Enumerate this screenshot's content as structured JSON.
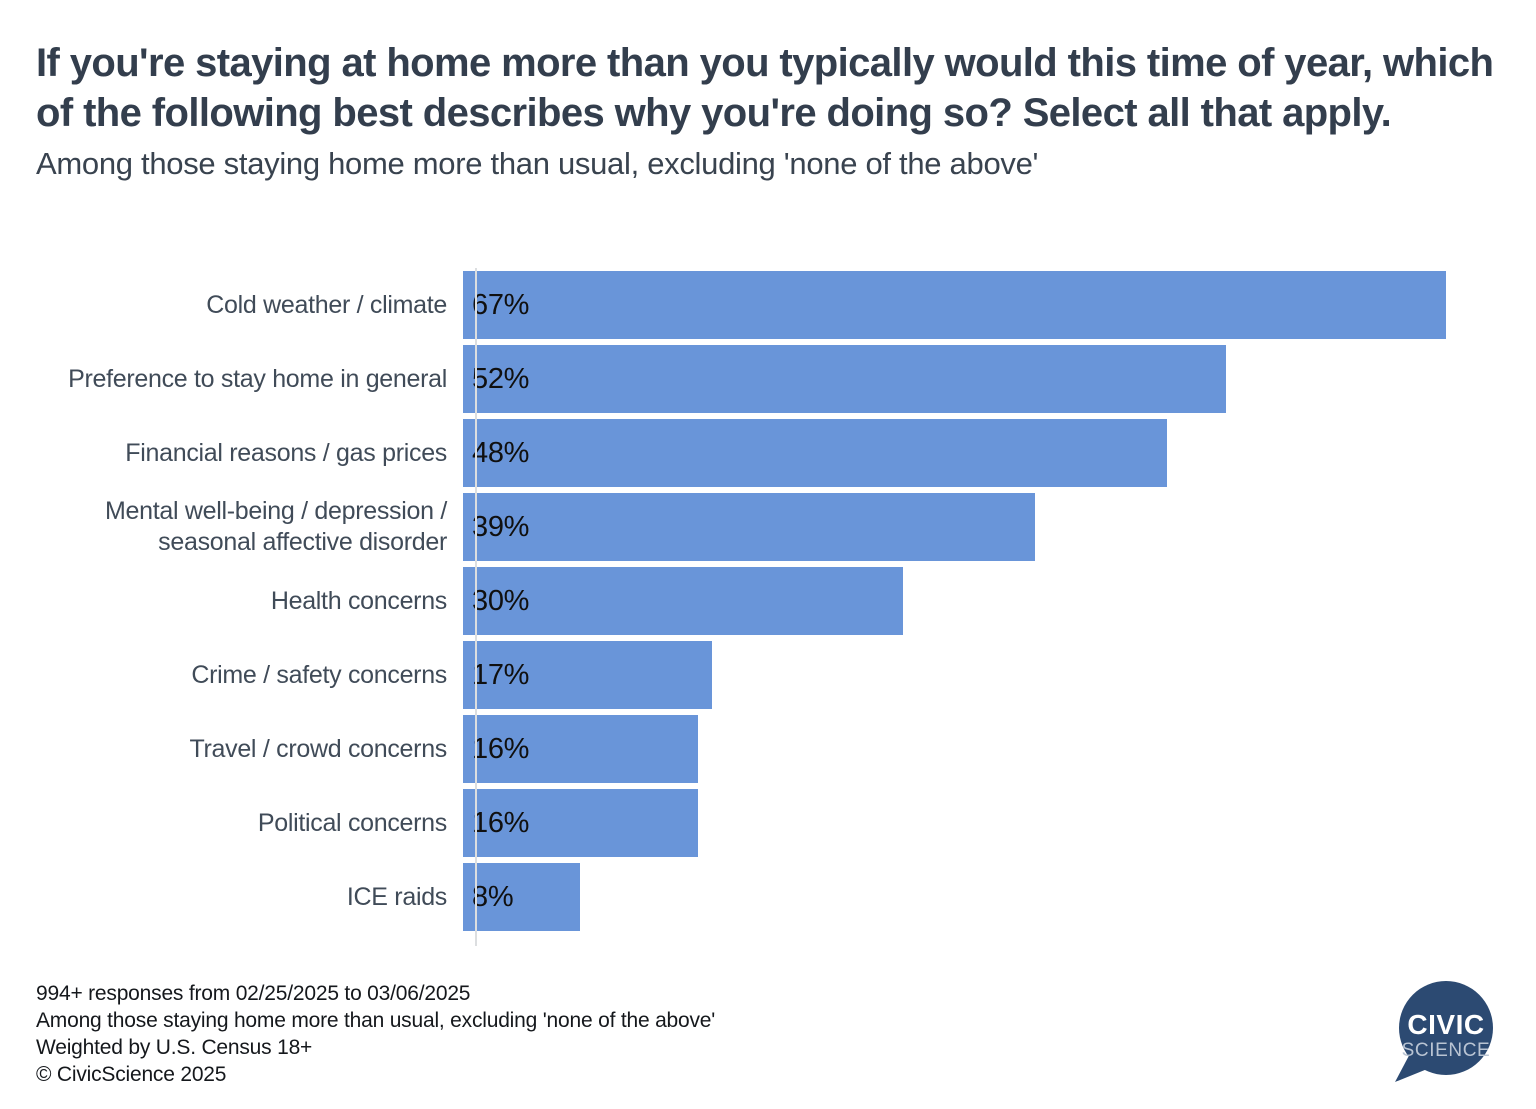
{
  "header": {
    "title": "If you're staying at home more than you typically would this time of year, which of the following best describes why you're doing so? Select all that apply.",
    "subtitle": "Among those staying home more than usual, excluding 'none of the above'"
  },
  "chart_data": {
    "type": "bar",
    "orientation": "horizontal",
    "categories": [
      "Cold weather / climate",
      "Preference to stay home in general",
      "Financial reasons / gas prices",
      "Mental well-being / depression / seasonal affective disorder",
      "Health concerns",
      "Crime / safety concerns",
      "Travel / crowd concerns",
      "Political concerns",
      "ICE raids"
    ],
    "values": [
      67,
      52,
      48,
      39,
      30,
      17,
      16,
      16,
      8
    ],
    "value_labels": [
      "67%",
      "52%",
      "48%",
      "39%",
      "30%",
      "17%",
      "16%",
      "16%",
      "8%"
    ],
    "title": "If you're staying at home more than you typically would this time of year, which of the following best describes why you're doing so? Select all that apply.",
    "subtitle": "Among those staying home more than usual, excluding 'none of the above'",
    "xlabel": "",
    "ylabel": "",
    "xlim": [
      0,
      69
    ],
    "grid": false,
    "legend": false,
    "bar_color": "#6995d9",
    "value_label_position": "inside-left"
  },
  "footer": {
    "lines": [
      "994+ responses from 02/25/2025 to 03/06/2025",
      "Among those staying home more than usual, excluding 'none of the above'",
      "Weighted by U.S. Census 18+",
      "© CivicScience 2025"
    ]
  },
  "logo": {
    "line1": "CIVIC",
    "line2": "SCIENCE",
    "bubble_color": "#2c4a72",
    "line1_color": "#ffffff",
    "line2_color": "#b9c4d3"
  }
}
